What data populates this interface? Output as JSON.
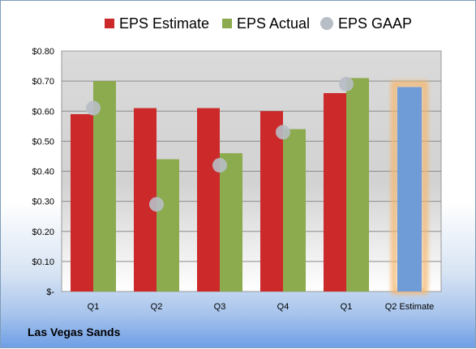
{
  "company": "Las Vegas Sands",
  "colors": {
    "estimate": "#cc2a2a",
    "actual": "#8caa4e",
    "gaap": "#b8bec6",
    "forecast_bar": "#6f9bd6",
    "forecast_glow": "#f6b66a"
  },
  "chart_data": {
    "type": "bar",
    "title": "",
    "xlabel": "",
    "ylabel": "",
    "ylim": [
      0,
      0.8
    ],
    "y_ticks": [
      "$-",
      "$0.10",
      "$0.20",
      "$0.30",
      "$0.40",
      "$0.50",
      "$0.60",
      "$0.70",
      "$0.80"
    ],
    "y_tick_values": [
      0,
      0.1,
      0.2,
      0.3,
      0.4,
      0.5,
      0.6,
      0.7,
      0.8
    ],
    "grid": true,
    "legend_position": "top",
    "legend": [
      "EPS Estimate",
      "EPS Actual",
      "EPS GAAP"
    ],
    "categories": [
      "Q1",
      "Q2",
      "Q3",
      "Q4",
      "Q1",
      "Q2 Estimate"
    ],
    "series": [
      {
        "name": "EPS Estimate",
        "kind": "bar",
        "values": [
          0.59,
          0.61,
          0.61,
          0.6,
          0.66,
          null
        ]
      },
      {
        "name": "EPS Actual",
        "kind": "bar",
        "values": [
          0.7,
          0.44,
          0.46,
          0.54,
          0.71,
          null
        ]
      },
      {
        "name": "EPS GAAP",
        "kind": "marker",
        "values": [
          0.61,
          0.29,
          0.42,
          0.53,
          0.69,
          null
        ]
      }
    ],
    "forecast": {
      "category": "Q2 Estimate",
      "value": 0.68
    }
  }
}
